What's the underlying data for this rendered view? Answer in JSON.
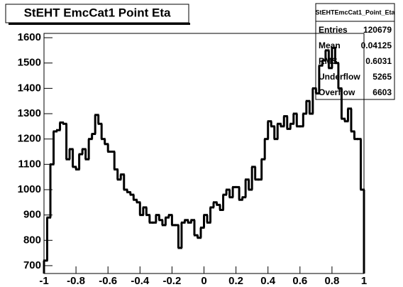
{
  "chart_data": {
    "type": "histogram",
    "title": "StEHT EmcCat1 Point Eta",
    "bins": [
      -1,
      -0.98,
      -0.96,
      -0.94,
      -0.92,
      -0.9,
      -0.88,
      -0.86,
      -0.84,
      -0.82,
      -0.8,
      -0.78,
      -0.76,
      -0.74,
      -0.72,
      -0.7,
      -0.68,
      -0.66,
      -0.64,
      -0.62,
      -0.6,
      -0.58,
      -0.56,
      -0.54,
      -0.52,
      -0.5,
      -0.48,
      -0.46,
      -0.44,
      -0.42,
      -0.4,
      -0.38,
      -0.36,
      -0.34,
      -0.32,
      -0.3,
      -0.28,
      -0.26,
      -0.24,
      -0.22,
      -0.2,
      -0.18,
      -0.16,
      -0.14,
      -0.12,
      -0.1,
      -0.08,
      -0.06,
      -0.04,
      -0.02,
      0,
      0.02,
      0.04,
      0.06,
      0.08,
      0.1,
      0.12,
      0.14,
      0.16,
      0.18,
      0.2,
      0.22,
      0.24,
      0.26,
      0.28,
      0.3,
      0.32,
      0.34,
      0.36,
      0.38,
      0.4,
      0.42,
      0.44,
      0.46,
      0.48,
      0.5,
      0.52,
      0.54,
      0.56,
      0.58,
      0.6,
      0.62,
      0.64,
      0.66,
      0.68,
      0.7,
      0.72,
      0.74,
      0.76,
      0.78,
      0.8,
      0.82,
      0.84,
      0.86,
      0.88,
      0.9,
      0.92,
      0.94,
      0.96,
      0.98,
      1
    ],
    "values": [
      720,
      890,
      1100,
      1230,
      1235,
      1265,
      1260,
      1120,
      1160,
      1090,
      1080,
      1140,
      1160,
      1120,
      1200,
      1220,
      1295,
      1260,
      1200,
      1180,
      1150,
      1150,
      1080,
      1040,
      1060,
      1000,
      990,
      980,
      960,
      950,
      900,
      930,
      900,
      870,
      870,
      900,
      880,
      860,
      890,
      900,
      860,
      860,
      770,
      870,
      880,
      870,
      880,
      820,
      810,
      850,
      900,
      870,
      930,
      950,
      940,
      920,
      980,
      1000,
      970,
      1010,
      1010,
      960,
      970,
      1040,
      1000,
      1090,
      1040,
      1040,
      1120,
      1200,
      1270,
      1250,
      1200,
      1260,
      1250,
      1290,
      1240,
      1260,
      1300,
      1250,
      1250,
      1300,
      1350,
      1300,
      1400,
      1380,
      1490,
      1510,
      1550,
      1480,
      1560,
      1500,
      1400,
      1280,
      1270,
      1320,
      1230,
      1200,
      1200,
      1000
    ],
    "color": "#000000",
    "xlim": [
      -1,
      1
    ],
    "xticks": [
      -1,
      -0.8,
      -0.6,
      -0.4,
      -0.2,
      0,
      0.2,
      0.4,
      0.6,
      0.8,
      1
    ],
    "ylim": [
      669,
      1617
    ],
    "yticks": [
      700,
      800,
      900,
      1000,
      1100,
      1200,
      1300,
      1400,
      1500,
      1600
    ],
    "stats": {
      "title": "StEHTEmcCat1_Point_Eta",
      "labels": [
        "Entries",
        "Mean",
        "RMS",
        "Underflow",
        "Overflow"
      ],
      "values": [
        120679,
        0.04125,
        0.6031,
        5265,
        6603
      ]
    }
  }
}
